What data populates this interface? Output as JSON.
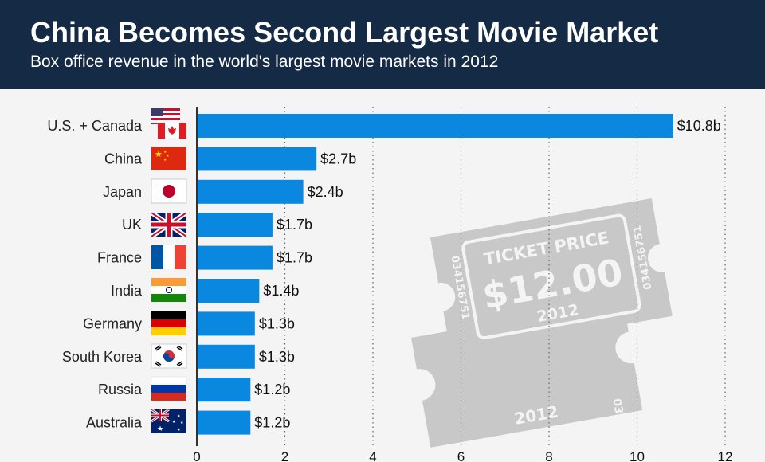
{
  "header": {
    "title": "China Becomes Second Largest Movie Market",
    "subtitle": "Box office revenue in the world's largest movie markets in 2012"
  },
  "ticket": {
    "heading": "TICKET PRICE",
    "price": "$12.00",
    "year": "2012",
    "serial": "034156751",
    "back_year": "2012",
    "back_serial": "03"
  },
  "colors": {
    "header_bg": "#152a44",
    "bar": "#0a88e0",
    "ticket": "#c8c8c8",
    "background": "#f4f4f4"
  },
  "chart_data": {
    "type": "bar",
    "orientation": "horizontal",
    "categories": [
      "U.S. + Canada",
      "China",
      "Japan",
      "UK",
      "France",
      "India",
      "Germany",
      "South Korea",
      "Russia",
      "Australia"
    ],
    "values": [
      10.8,
      2.7,
      2.4,
      1.7,
      1.7,
      1.4,
      1.3,
      1.3,
      1.2,
      1.2
    ],
    "value_labels": [
      "$10.8b",
      "$2.7b",
      "$2.4b",
      "$1.7b",
      "$1.7b",
      "$1.4b",
      "$1.3b",
      "$1.3b",
      "$1.2b",
      "$1.2b"
    ],
    "flags": [
      "us-canada-flag-icon",
      "china-flag-icon",
      "japan-flag-icon",
      "uk-flag-icon",
      "france-flag-icon",
      "india-flag-icon",
      "germany-flag-icon",
      "south-korea-flag-icon",
      "russia-flag-icon",
      "australia-flag-icon"
    ],
    "xlim": [
      0,
      12
    ],
    "xticks": [
      "0",
      "2",
      "4",
      "6",
      "8",
      "10",
      "12"
    ],
    "grid": "dotted vertical",
    "legend": "none"
  }
}
